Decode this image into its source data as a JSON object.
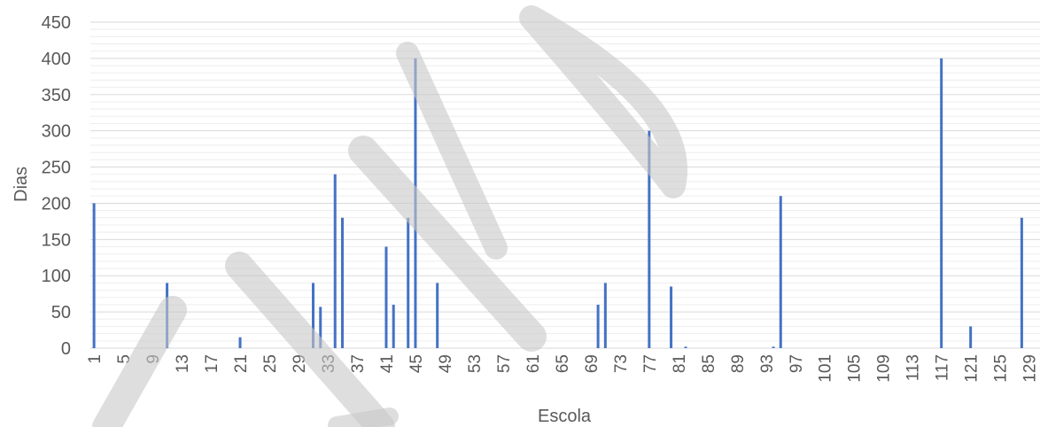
{
  "chart_data": {
    "type": "bar",
    "title": "",
    "xlabel": "Escola",
    "ylabel": "Dias",
    "xlim": [
      1,
      130
    ],
    "ylim": [
      0,
      450
    ],
    "yticks": [
      0,
      50,
      100,
      150,
      200,
      250,
      300,
      350,
      400,
      450
    ],
    "xtick_labels": [
      "1",
      "5",
      "9",
      "13",
      "17",
      "21",
      "25",
      "29",
      "33",
      "37",
      "41",
      "45",
      "49",
      "53",
      "57",
      "61",
      "65",
      "69",
      "73",
      "77",
      "81",
      "85",
      "89",
      "93",
      "97",
      "101",
      "105",
      "109",
      "113",
      "117",
      "121",
      "125",
      "129"
    ],
    "grid": true,
    "series_color": "#4472C4",
    "points": [
      {
        "x": 1,
        "y": 200
      },
      {
        "x": 11,
        "y": 90
      },
      {
        "x": 21,
        "y": 15
      },
      {
        "x": 31,
        "y": 90
      },
      {
        "x": 32,
        "y": 57
      },
      {
        "x": 34,
        "y": 240
      },
      {
        "x": 35,
        "y": 180
      },
      {
        "x": 41,
        "y": 140
      },
      {
        "x": 42,
        "y": 60
      },
      {
        "x": 44,
        "y": 180
      },
      {
        "x": 45,
        "y": 400
      },
      {
        "x": 48,
        "y": 90
      },
      {
        "x": 70,
        "y": 60
      },
      {
        "x": 71,
        "y": 90
      },
      {
        "x": 77,
        "y": 300
      },
      {
        "x": 80,
        "y": 85
      },
      {
        "x": 82,
        "y": 2
      },
      {
        "x": 94,
        "y": 2
      },
      {
        "x": 95,
        "y": 210
      },
      {
        "x": 117,
        "y": 400
      },
      {
        "x": 121,
        "y": 30
      },
      {
        "x": 128,
        "y": 180
      }
    ]
  }
}
